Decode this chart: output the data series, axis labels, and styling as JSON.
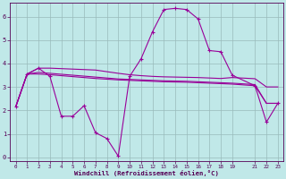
{
  "xlabel": "Windchill (Refroidissement éolien,°C)",
  "bg_color": "#c0e8e8",
  "line_color": "#990099",
  "grid_color": "#99bbbb",
  "xlim": [
    -0.5,
    23.5
  ],
  "ylim": [
    -0.15,
    6.6
  ],
  "xticks": [
    0,
    1,
    2,
    3,
    4,
    5,
    6,
    7,
    8,
    9,
    10,
    11,
    12,
    13,
    14,
    15,
    16,
    17,
    18,
    19,
    21,
    22,
    23
  ],
  "yticks": [
    0,
    1,
    2,
    3,
    4,
    5,
    6
  ],
  "main_line": {
    "x": [
      0,
      1,
      2,
      3,
      4,
      5,
      6,
      7,
      8,
      9,
      10,
      11,
      12,
      13,
      14,
      15,
      16,
      17,
      18,
      19,
      21,
      22,
      23
    ],
    "y": [
      2.15,
      3.55,
      3.8,
      3.45,
      1.75,
      1.75,
      2.2,
      1.05,
      0.8,
      0.05,
      3.45,
      4.2,
      5.35,
      6.3,
      6.35,
      6.3,
      5.9,
      4.55,
      4.5,
      3.5,
      3.05,
      1.5,
      2.3
    ]
  },
  "smooth_line1": {
    "x": [
      0,
      1,
      2,
      3,
      4,
      5,
      6,
      7,
      8,
      9,
      10,
      11,
      12,
      13,
      14,
      15,
      16,
      17,
      18,
      19,
      21,
      22,
      23
    ],
    "y": [
      2.15,
      3.55,
      3.8,
      3.8,
      3.78,
      3.76,
      3.74,
      3.72,
      3.65,
      3.58,
      3.52,
      3.48,
      3.45,
      3.43,
      3.42,
      3.41,
      3.4,
      3.38,
      3.36,
      3.4,
      3.35,
      3.0,
      3.0
    ]
  },
  "smooth_line2": {
    "x": [
      0,
      1,
      2,
      3,
      4,
      5,
      6,
      7,
      8,
      9,
      10,
      11,
      12,
      13,
      14,
      15,
      16,
      17,
      18,
      19,
      21,
      22,
      23
    ],
    "y": [
      2.15,
      3.55,
      3.62,
      3.58,
      3.54,
      3.5,
      3.46,
      3.42,
      3.38,
      3.34,
      3.32,
      3.3,
      3.28,
      3.26,
      3.25,
      3.24,
      3.22,
      3.2,
      3.18,
      3.16,
      3.1,
      2.3,
      2.3
    ]
  },
  "smooth_line3": {
    "x": [
      0,
      1,
      2,
      3,
      4,
      5,
      6,
      7,
      8,
      9,
      10,
      11,
      12,
      13,
      14,
      15,
      16,
      17,
      18,
      19,
      21,
      22,
      23
    ],
    "y": [
      2.15,
      3.55,
      3.55,
      3.52,
      3.48,
      3.44,
      3.4,
      3.36,
      3.33,
      3.3,
      3.28,
      3.26,
      3.24,
      3.22,
      3.21,
      3.2,
      3.18,
      3.16,
      3.14,
      3.12,
      3.05,
      2.3,
      2.3
    ]
  }
}
